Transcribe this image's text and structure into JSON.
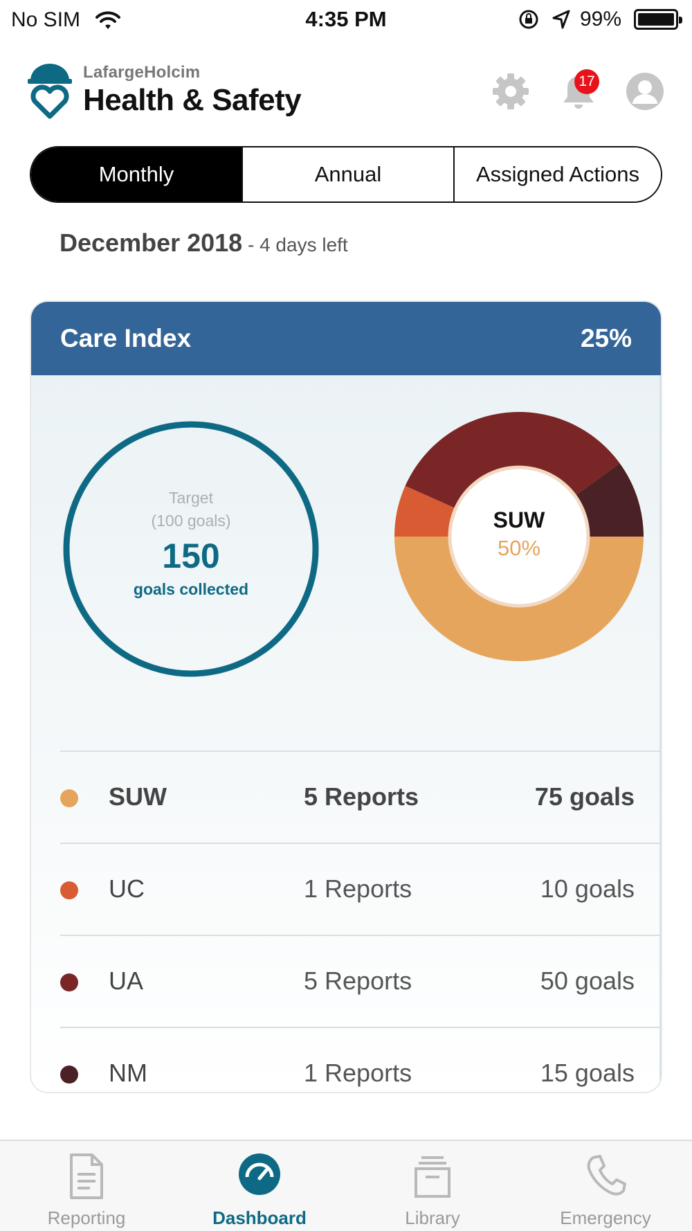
{
  "status_bar": {
    "carrier": "No SIM",
    "time": "4:35 PM",
    "battery": "99%"
  },
  "header": {
    "brand_small": "LafargeHolcim",
    "brand_title": "Health & Safety",
    "notification_count": "17"
  },
  "segments": [
    {
      "label": "Monthly",
      "selected": true
    },
    {
      "label": "Annual",
      "selected": false
    },
    {
      "label": "Assigned Actions",
      "selected": false
    }
  ],
  "period": {
    "title": "December 2018",
    "subtitle": " - 4 days left"
  },
  "care_index": {
    "title": "Care Index",
    "value": "25%",
    "target_label": "Target",
    "target_goals": "(100  goals)",
    "collected_value": "150",
    "collected_label": "goals collected",
    "donut_label": "SUW",
    "donut_value": "50%"
  },
  "chart_data": {
    "type": "pie",
    "style": "donut",
    "categories": [
      "SUW",
      "UC",
      "UA",
      "NM"
    ],
    "values": [
      75,
      10,
      50,
      15
    ],
    "colors": [
      "#e5a55d",
      "#d85b34",
      "#7a2626",
      "#4a2124"
    ],
    "title": "",
    "center_label": "SUW",
    "center_value": "50%"
  },
  "breakdown": [
    {
      "name": "SUW",
      "reports": "5 Reports",
      "goals": "75  goals",
      "color": "#e5a55d"
    },
    {
      "name": "UC",
      "reports": "1 Reports",
      "goals": "10  goals",
      "color": "#d85b34"
    },
    {
      "name": "UA",
      "reports": "5 Reports",
      "goals": "50  goals",
      "color": "#7a2626"
    },
    {
      "name": "NM",
      "reports": "1 Reports",
      "goals": "15  goals",
      "color": "#4a2124"
    }
  ],
  "tabbar": [
    {
      "label": "Reporting",
      "icon": "document-icon",
      "active": false
    },
    {
      "label": "Dashboard",
      "icon": "gauge-icon",
      "active": true
    },
    {
      "label": "Library",
      "icon": "archive-icon",
      "active": false
    },
    {
      "label": "Emergency",
      "icon": "phone-icon",
      "active": false
    }
  ],
  "colors": {
    "accent": "#0e6a84",
    "card_header": "#346598",
    "badge": "#e8121c"
  }
}
